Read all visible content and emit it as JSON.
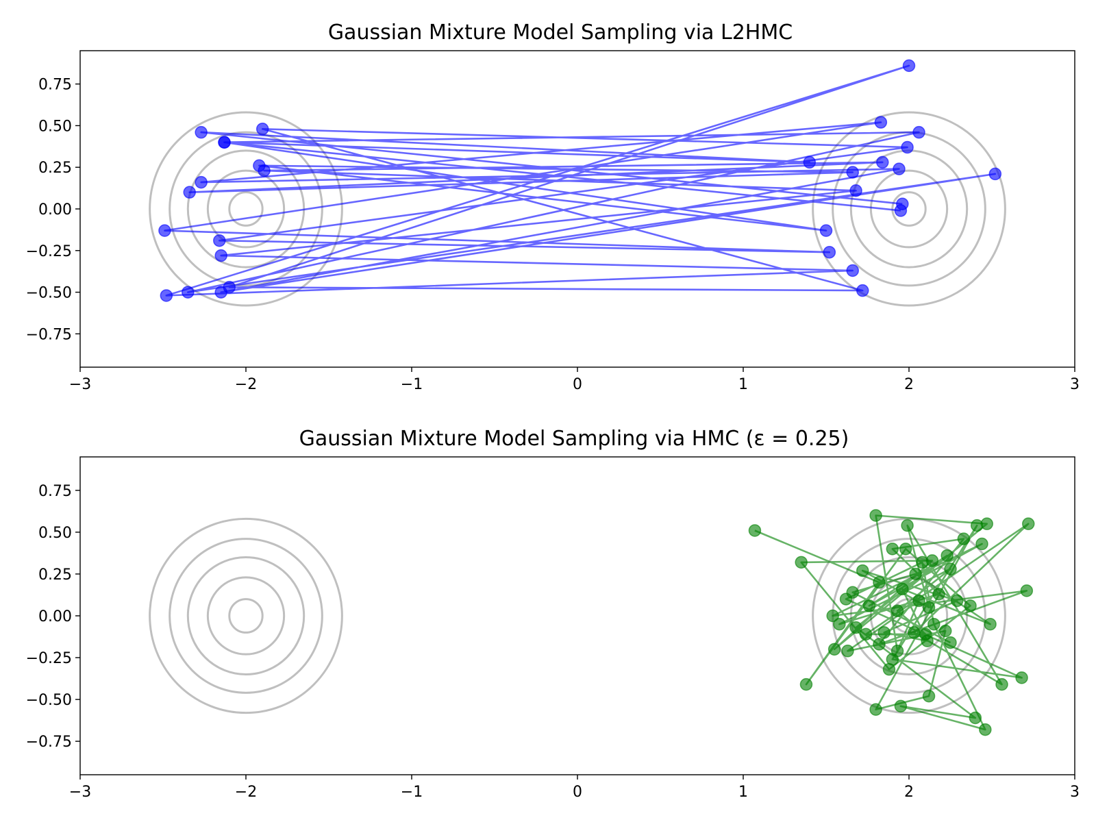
{
  "chart_data": [
    {
      "type": "line",
      "title": "Gaussian Mixture Model Sampling via L2HMC",
      "xlabel": "",
      "ylabel": "",
      "xlim": [
        -3,
        3
      ],
      "ylim": [
        -0.95,
        0.95
      ],
      "xticks": [
        -3,
        -2,
        -1,
        0,
        1,
        2,
        3
      ],
      "yticks": [
        -0.75,
        -0.5,
        -0.25,
        0.0,
        0.25,
        0.5,
        0.75
      ],
      "xtick_labels": [
        "−3",
        "−2",
        "−1",
        "0",
        "1",
        "2",
        "3"
      ],
      "ytick_labels": [
        "−0.75",
        "−0.50",
        "−0.25",
        "0.00",
        "0.25",
        "0.50",
        "0.75"
      ],
      "grid": false,
      "contours": {
        "color": "#bfbfbf",
        "centers": [
          [
            -2,
            0
          ],
          [
            2,
            0
          ]
        ],
        "radii": [
          0.1,
          0.23,
          0.35,
          0.46,
          0.58
        ]
      },
      "series": [
        {
          "color": "#0000ff",
          "points": [
            [
              1.96,
              0.03
            ],
            [
              -2.27,
              0.46
            ],
            [
              1.4,
              0.28
            ],
            [
              -2.13,
              0.4
            ],
            [
              1.5,
              -0.13
            ],
            [
              -1.92,
              0.26
            ],
            [
              1.66,
              0.22
            ],
            [
              -2.34,
              0.1
            ],
            [
              1.84,
              0.28
            ],
            [
              -1.89,
              0.23
            ],
            [
              1.68,
              0.11
            ],
            [
              -2.15,
              -0.28
            ],
            [
              1.66,
              -0.37
            ],
            [
              -2.48,
              -0.52
            ],
            [
              2.0,
              0.86
            ],
            [
              -2.1,
              -0.47
            ],
            [
              1.72,
              -0.49
            ],
            [
              -1.9,
              0.48
            ],
            [
              1.99,
              0.37
            ],
            [
              -2.16,
              -0.19
            ],
            [
              1.52,
              -0.26
            ],
            [
              -2.49,
              -0.13
            ],
            [
              1.83,
              0.52
            ],
            [
              -2.27,
              0.16
            ],
            [
              1.94,
              0.24
            ],
            [
              -2.15,
              -0.5
            ],
            [
              2.52,
              0.21
            ],
            [
              -2.35,
              -0.5
            ],
            [
              2.06,
              0.46
            ],
            [
              -2.13,
              0.4
            ],
            [
              1.95,
              -0.01
            ]
          ]
        }
      ]
    },
    {
      "type": "line",
      "title": "Gaussian Mixture Model Sampling via HMC (ε = 0.25)",
      "xlabel": "",
      "ylabel": "",
      "xlim": [
        -3,
        3
      ],
      "ylim": [
        -0.95,
        0.95
      ],
      "xticks": [
        -3,
        -2,
        -1,
        0,
        1,
        2,
        3
      ],
      "yticks": [
        -0.75,
        -0.5,
        -0.25,
        0.0,
        0.25,
        0.5,
        0.75
      ],
      "xtick_labels": [
        "−3",
        "−2",
        "−1",
        "0",
        "1",
        "2",
        "3"
      ],
      "ytick_labels": [
        "−0.75",
        "−0.50",
        "−0.25",
        "0.00",
        "0.25",
        "0.50",
        "0.75"
      ],
      "grid": false,
      "contours": {
        "color": "#bfbfbf",
        "centers": [
          [
            -2,
            0
          ],
          [
            2,
            0
          ]
        ],
        "radii": [
          0.1,
          0.23,
          0.35,
          0.46,
          0.58
        ]
      },
      "series": [
        {
          "color": "#008000",
          "points": [
            [
              1.07,
              0.51
            ],
            [
              1.82,
              0.2
            ],
            [
              1.38,
              -0.41
            ],
            [
              1.98,
              0.4
            ],
            [
              2.37,
              0.06
            ],
            [
              1.88,
              -0.32
            ],
            [
              1.35,
              0.32
            ],
            [
              2.14,
              0.33
            ],
            [
              1.55,
              -0.2
            ],
            [
              2.47,
              0.55
            ],
            [
              1.8,
              0.6
            ],
            [
              1.93,
              -0.21
            ],
            [
              2.06,
              0.09
            ],
            [
              1.63,
              -0.21
            ],
            [
              2.22,
              -0.09
            ],
            [
              2.12,
              -0.48
            ],
            [
              1.8,
              -0.56
            ],
            [
              2.41,
              0.54
            ],
            [
              1.9,
              -0.26
            ],
            [
              2.68,
              -0.37
            ],
            [
              1.62,
              0.1
            ],
            [
              2.08,
              0.32
            ],
            [
              2.15,
              -0.05
            ],
            [
              2.46,
              -0.68
            ],
            [
              1.95,
              -0.54
            ],
            [
              2.4,
              -0.61
            ],
            [
              1.68,
              -0.07
            ],
            [
              2.23,
              0.36
            ],
            [
              1.76,
              0.06
            ],
            [
              2.44,
              0.43
            ],
            [
              1.54,
              0.0
            ],
            [
              2.71,
              0.15
            ],
            [
              1.82,
              -0.17
            ],
            [
              2.33,
              0.46
            ],
            [
              1.9,
              0.4
            ],
            [
              2.18,
              0.13
            ],
            [
              1.58,
              -0.05
            ],
            [
              2.25,
              0.28
            ],
            [
              1.93,
              0.03
            ],
            [
              2.1,
              -0.11
            ],
            [
              1.74,
              -0.11
            ],
            [
              2.72,
              0.55
            ],
            [
              2.03,
              -0.1
            ],
            [
              2.56,
              -0.41
            ],
            [
              1.99,
              0.54
            ],
            [
              2.12,
              0.05
            ],
            [
              1.72,
              0.27
            ],
            [
              2.29,
              0.09
            ],
            [
              1.85,
              -0.1
            ],
            [
              2.11,
              -0.15
            ],
            [
              1.96,
              0.16
            ],
            [
              2.49,
              -0.05
            ],
            [
              2.04,
              0.25
            ],
            [
              1.66,
              0.14
            ],
            [
              2.25,
              -0.16
            ]
          ]
        }
      ]
    }
  ]
}
